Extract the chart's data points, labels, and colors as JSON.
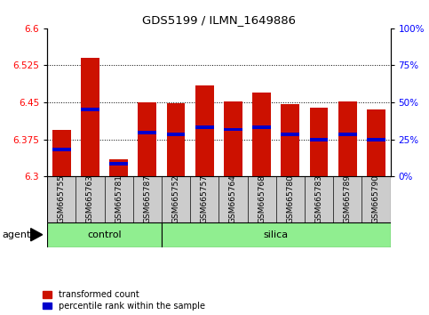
{
  "title": "GDS5199 / ILMN_1649886",
  "samples": [
    "GSM665755",
    "GSM665763",
    "GSM665781",
    "GSM665787",
    "GSM665752",
    "GSM665757",
    "GSM665764",
    "GSM665768",
    "GSM665780",
    "GSM665783",
    "GSM665789",
    "GSM665790"
  ],
  "groups": [
    "control",
    "control",
    "control",
    "control",
    "silica",
    "silica",
    "silica",
    "silica",
    "silica",
    "silica",
    "silica",
    "silica"
  ],
  "transformed_count": [
    6.395,
    6.54,
    6.335,
    6.45,
    6.448,
    6.485,
    6.452,
    6.47,
    6.447,
    6.44,
    6.452,
    6.435
  ],
  "percentile_rank": [
    6.355,
    6.435,
    6.325,
    6.388,
    6.385,
    6.4,
    6.395,
    6.4,
    6.385,
    6.375,
    6.385,
    6.375
  ],
  "ylim_left": [
    6.3,
    6.6
  ],
  "ylim_right": [
    0,
    100
  ],
  "yticks_left": [
    6.3,
    6.375,
    6.45,
    6.525,
    6.6
  ],
  "yticks_right": [
    0,
    25,
    50,
    75,
    100
  ],
  "grid_values": [
    6.375,
    6.45,
    6.525
  ],
  "bar_color": "#cc1100",
  "marker_color": "#0000cc",
  "bar_bottom": 6.3,
  "bar_width": 0.65,
  "control_color": "#90ee90",
  "silica_color": "#90ee90",
  "agent_label": "agent",
  "legend_items": [
    "transformed count",
    "percentile rank within the sample"
  ],
  "legend_colors": [
    "#cc1100",
    "#0000cc"
  ],
  "control_count": 4,
  "n_samples": 12
}
